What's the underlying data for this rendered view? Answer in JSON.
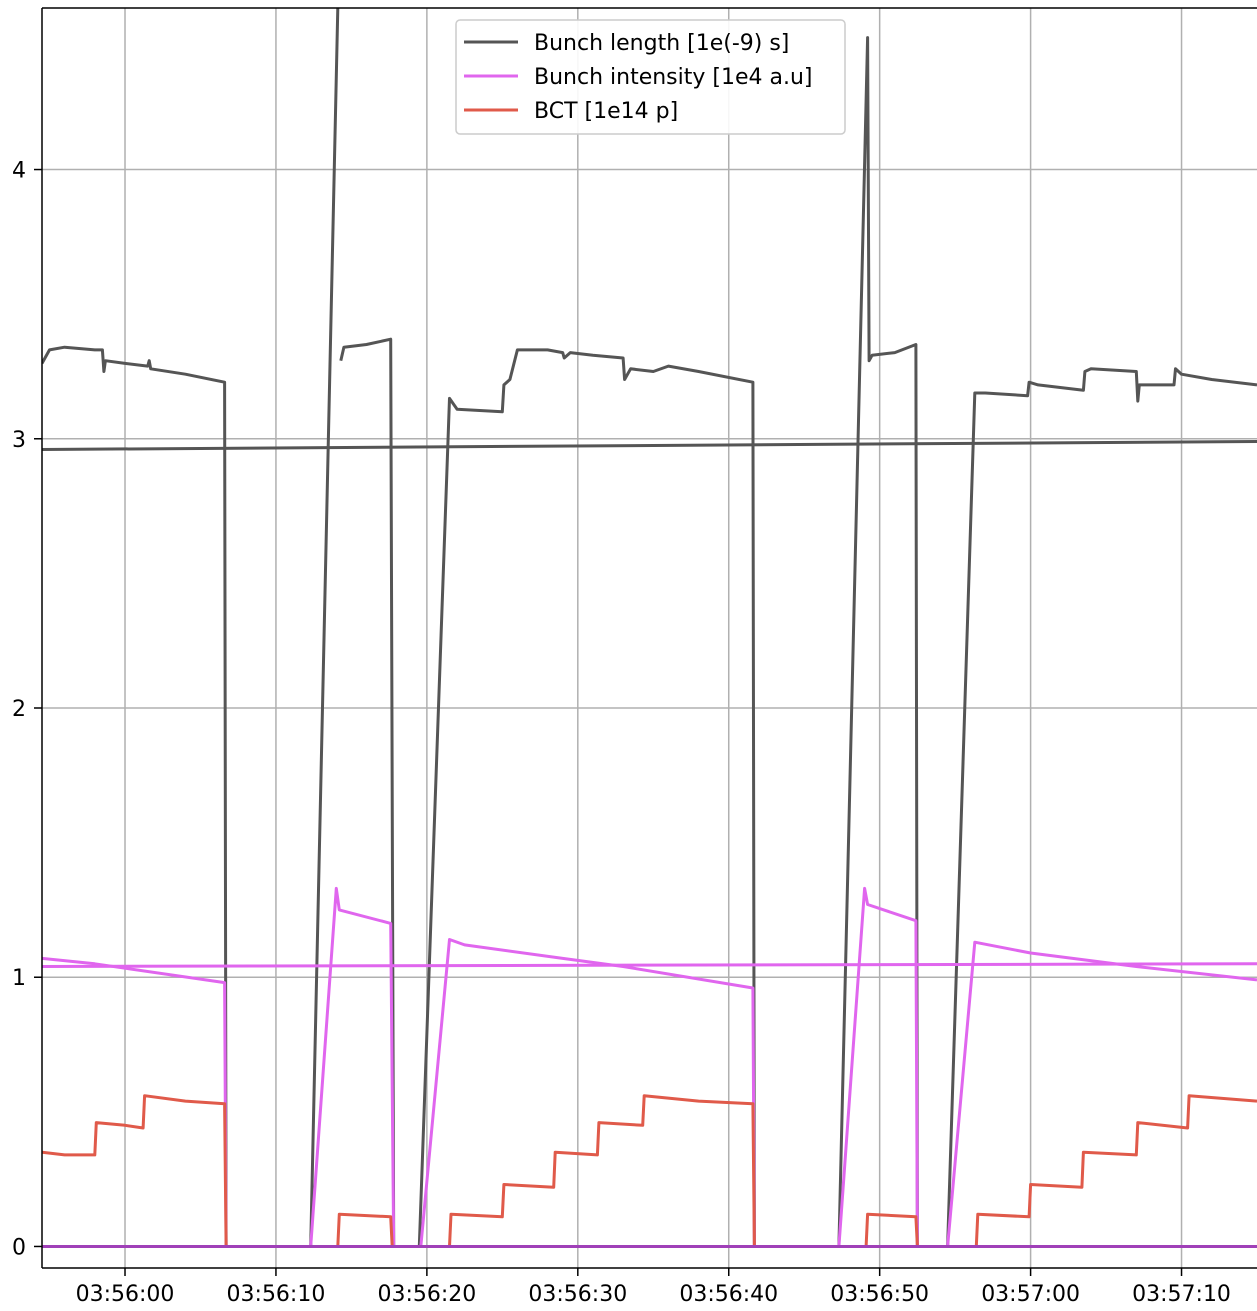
{
  "chart_data": {
    "type": "line",
    "xlabel": "",
    "ylabel": "",
    "xlim": [
      "03:55:54.5",
      "03:57:15.0"
    ],
    "ylim": [
      -0.08,
      4.6
    ],
    "x_ticks": [
      "03:56:00",
      "03:56:10",
      "03:56:20",
      "03:56:30",
      "03:56:40",
      "03:56:50",
      "03:57:00",
      "03:57:10"
    ],
    "y_ticks": [
      0,
      1,
      2,
      3,
      4
    ],
    "grid": true,
    "legend": {
      "position": "top-center"
    },
    "series": [
      {
        "name": "Bunch length [1e(-9) s]",
        "color": "#555555",
        "segments": [
          [
            [
              "03:55:54.5",
              2.96
            ],
            [
              "03:57:15.0",
              2.99
            ]
          ],
          [
            [
              "03:55:54.5",
              3.28
            ],
            [
              "03:55:55.0",
              3.33
            ],
            [
              "03:55:56.0",
              3.34
            ],
            [
              "03:55:58.0",
              3.33
            ],
            [
              "03:55:58.5",
              3.33
            ],
            [
              "03:55:58.6",
              3.25
            ],
            [
              "03:55:58.7",
              3.29
            ],
            [
              "03:56:00.0",
              3.28
            ],
            [
              "03:56:01.5",
              3.27
            ],
            [
              "03:56:01.6",
              3.29
            ],
            [
              "03:56:01.7",
              3.26
            ],
            [
              "03:56:04.0",
              3.24
            ],
            [
              "03:56:06.6",
              3.21
            ],
            [
              "03:56:06.7",
              0.0
            ],
            [
              "03:56:12.3",
              0.0
            ],
            [
              "03:56:14.1",
              4.6
            ]
          ],
          [
            [
              "03:56:14.3",
              3.29
            ],
            [
              "03:56:14.5",
              3.34
            ],
            [
              "03:56:16.0",
              3.35
            ],
            [
              "03:56:17.6",
              3.37
            ],
            [
              "03:56:17.8",
              0.0
            ],
            [
              "03:56:19.5",
              0.0
            ],
            [
              "03:56:21.5",
              3.15
            ],
            [
              "03:56:22.0",
              3.11
            ],
            [
              "03:56:25.0",
              3.1
            ],
            [
              "03:56:25.1",
              3.2
            ],
            [
              "03:56:25.5",
              3.22
            ],
            [
              "03:56:26.0",
              3.33
            ],
            [
              "03:56:28.0",
              3.33
            ],
            [
              "03:56:29.0",
              3.32
            ],
            [
              "03:56:29.1",
              3.3
            ],
            [
              "03:56:29.5",
              3.32
            ],
            [
              "03:56:31.0",
              3.31
            ],
            [
              "03:56:33.0",
              3.3
            ],
            [
              "03:56:33.1",
              3.22
            ],
            [
              "03:56:33.5",
              3.26
            ],
            [
              "03:56:35.0",
              3.25
            ],
            [
              "03:56:36.0",
              3.27
            ],
            [
              "03:56:38.0",
              3.25
            ],
            [
              "03:56:41.6",
              3.21
            ],
            [
              "03:56:41.7",
              0.0
            ],
            [
              "03:56:47.3",
              0.0
            ],
            [
              "03:56:49.2",
              4.49
            ],
            [
              "03:56:49.3",
              3.29
            ],
            [
              "03:56:49.5",
              3.31
            ],
            [
              "03:56:51.0",
              3.32
            ],
            [
              "03:56:52.4",
              3.35
            ],
            [
              "03:56:52.5",
              0.0
            ],
            [
              "03:56:54.5",
              0.0
            ],
            [
              "03:56:56.3",
              3.17
            ],
            [
              "03:56:57.0",
              3.17
            ],
            [
              "03:56:59.8",
              3.16
            ],
            [
              "03:56:59.9",
              3.21
            ],
            [
              "03:57:00.5",
              3.2
            ],
            [
              "03:57:03.5",
              3.18
            ],
            [
              "03:57:03.6",
              3.25
            ],
            [
              "03:57:04.0",
              3.26
            ],
            [
              "03:57:07.0",
              3.25
            ],
            [
              "03:57:07.1",
              3.14
            ],
            [
              "03:57:07.2",
              3.2
            ],
            [
              "03:57:09.5",
              3.2
            ],
            [
              "03:57:09.6",
              3.26
            ],
            [
              "03:57:10.0",
              3.24
            ],
            [
              "03:57:12.0",
              3.22
            ],
            [
              "03:57:15.0",
              3.2
            ]
          ]
        ]
      },
      {
        "name": "Bunch intensity [1e4 a.u]",
        "color": "#e066ee",
        "segments": [
          [
            [
              "03:55:54.5",
              1.04
            ],
            [
              "03:57:15.0",
              1.05
            ]
          ],
          [
            [
              "03:55:54.5",
              1.07
            ],
            [
              "03:55:58.0",
              1.05
            ],
            [
              "03:56:06.6",
              0.98
            ],
            [
              "03:56:06.7",
              0.0
            ],
            [
              "03:56:12.3",
              0.0
            ],
            [
              "03:56:14.0",
              1.33
            ],
            [
              "03:56:14.2",
              1.25
            ],
            [
              "03:56:17.6",
              1.2
            ],
            [
              "03:56:17.8",
              0.0
            ],
            [
              "03:56:19.6",
              0.0
            ],
            [
              "03:56:21.5",
              1.14
            ],
            [
              "03:56:22.5",
              1.12
            ],
            [
              "03:56:29.0",
              1.07
            ],
            [
              "03:56:33.0",
              1.04
            ],
            [
              "03:56:41.6",
              0.96
            ],
            [
              "03:56:41.7",
              0.0
            ],
            [
              "03:56:47.3",
              0.0
            ],
            [
              "03:56:49.0",
              1.33
            ],
            [
              "03:56:49.2",
              1.27
            ],
            [
              "03:56:52.4",
              1.21
            ],
            [
              "03:56:52.5",
              0.0
            ],
            [
              "03:56:54.5",
              0.0
            ],
            [
              "03:56:56.3",
              1.13
            ],
            [
              "03:57:00.0",
              1.09
            ],
            [
              "03:57:07.0",
              1.04
            ],
            [
              "03:57:15.0",
              0.99
            ]
          ]
        ]
      },
      {
        "name": "BCT [1e14 p]",
        "color": "#e05a4a",
        "segments": [
          [
            [
              "03:55:54.5",
              0.35
            ],
            [
              "03:55:56.0",
              0.34
            ],
            [
              "03:55:58.0",
              0.34
            ],
            [
              "03:55:58.1",
              0.46
            ],
            [
              "03:56:00.0",
              0.45
            ],
            [
              "03:56:01.2",
              0.44
            ],
            [
              "03:56:01.3",
              0.56
            ],
            [
              "03:56:04.0",
              0.54
            ],
            [
              "03:56:06.6",
              0.53
            ],
            [
              "03:56:06.7",
              0.0
            ],
            [
              "03:56:14.1",
              0.0
            ],
            [
              "03:56:14.2",
              0.12
            ],
            [
              "03:56:17.6",
              0.11
            ],
            [
              "03:56:17.7",
              0.0
            ],
            [
              "03:56:21.5",
              0.0
            ],
            [
              "03:56:21.6",
              0.12
            ],
            [
              "03:56:25.0",
              0.11
            ],
            [
              "03:56:25.1",
              0.23
            ],
            [
              "03:56:28.4",
              0.22
            ],
            [
              "03:56:28.5",
              0.35
            ],
            [
              "03:56:31.3",
              0.34
            ],
            [
              "03:56:31.4",
              0.46
            ],
            [
              "03:56:34.3",
              0.45
            ],
            [
              "03:56:34.4",
              0.56
            ],
            [
              "03:56:38.0",
              0.54
            ],
            [
              "03:56:41.6",
              0.53
            ],
            [
              "03:56:41.7",
              0.0
            ],
            [
              "03:56:49.1",
              0.0
            ],
            [
              "03:56:49.2",
              0.12
            ],
            [
              "03:56:52.4",
              0.11
            ],
            [
              "03:56:52.5",
              0.0
            ],
            [
              "03:56:56.4",
              0.0
            ],
            [
              "03:56:56.5",
              0.12
            ],
            [
              "03:56:59.9",
              0.11
            ],
            [
              "03:57:00.0",
              0.23
            ],
            [
              "03:57:03.4",
              0.22
            ],
            [
              "03:57:03.5",
              0.35
            ],
            [
              "03:57:07.0",
              0.34
            ],
            [
              "03:57:07.1",
              0.46
            ],
            [
              "03:57:10.4",
              0.44
            ],
            [
              "03:57:10.5",
              0.56
            ],
            [
              "03:57:15.0",
              0.54
            ]
          ]
        ]
      },
      {
        "name": "",
        "color": "#a040b8",
        "segments": [
          [
            [
              "03:55:54.5",
              0.0
            ],
            [
              "03:57:15.0",
              0.0
            ]
          ]
        ]
      }
    ]
  }
}
